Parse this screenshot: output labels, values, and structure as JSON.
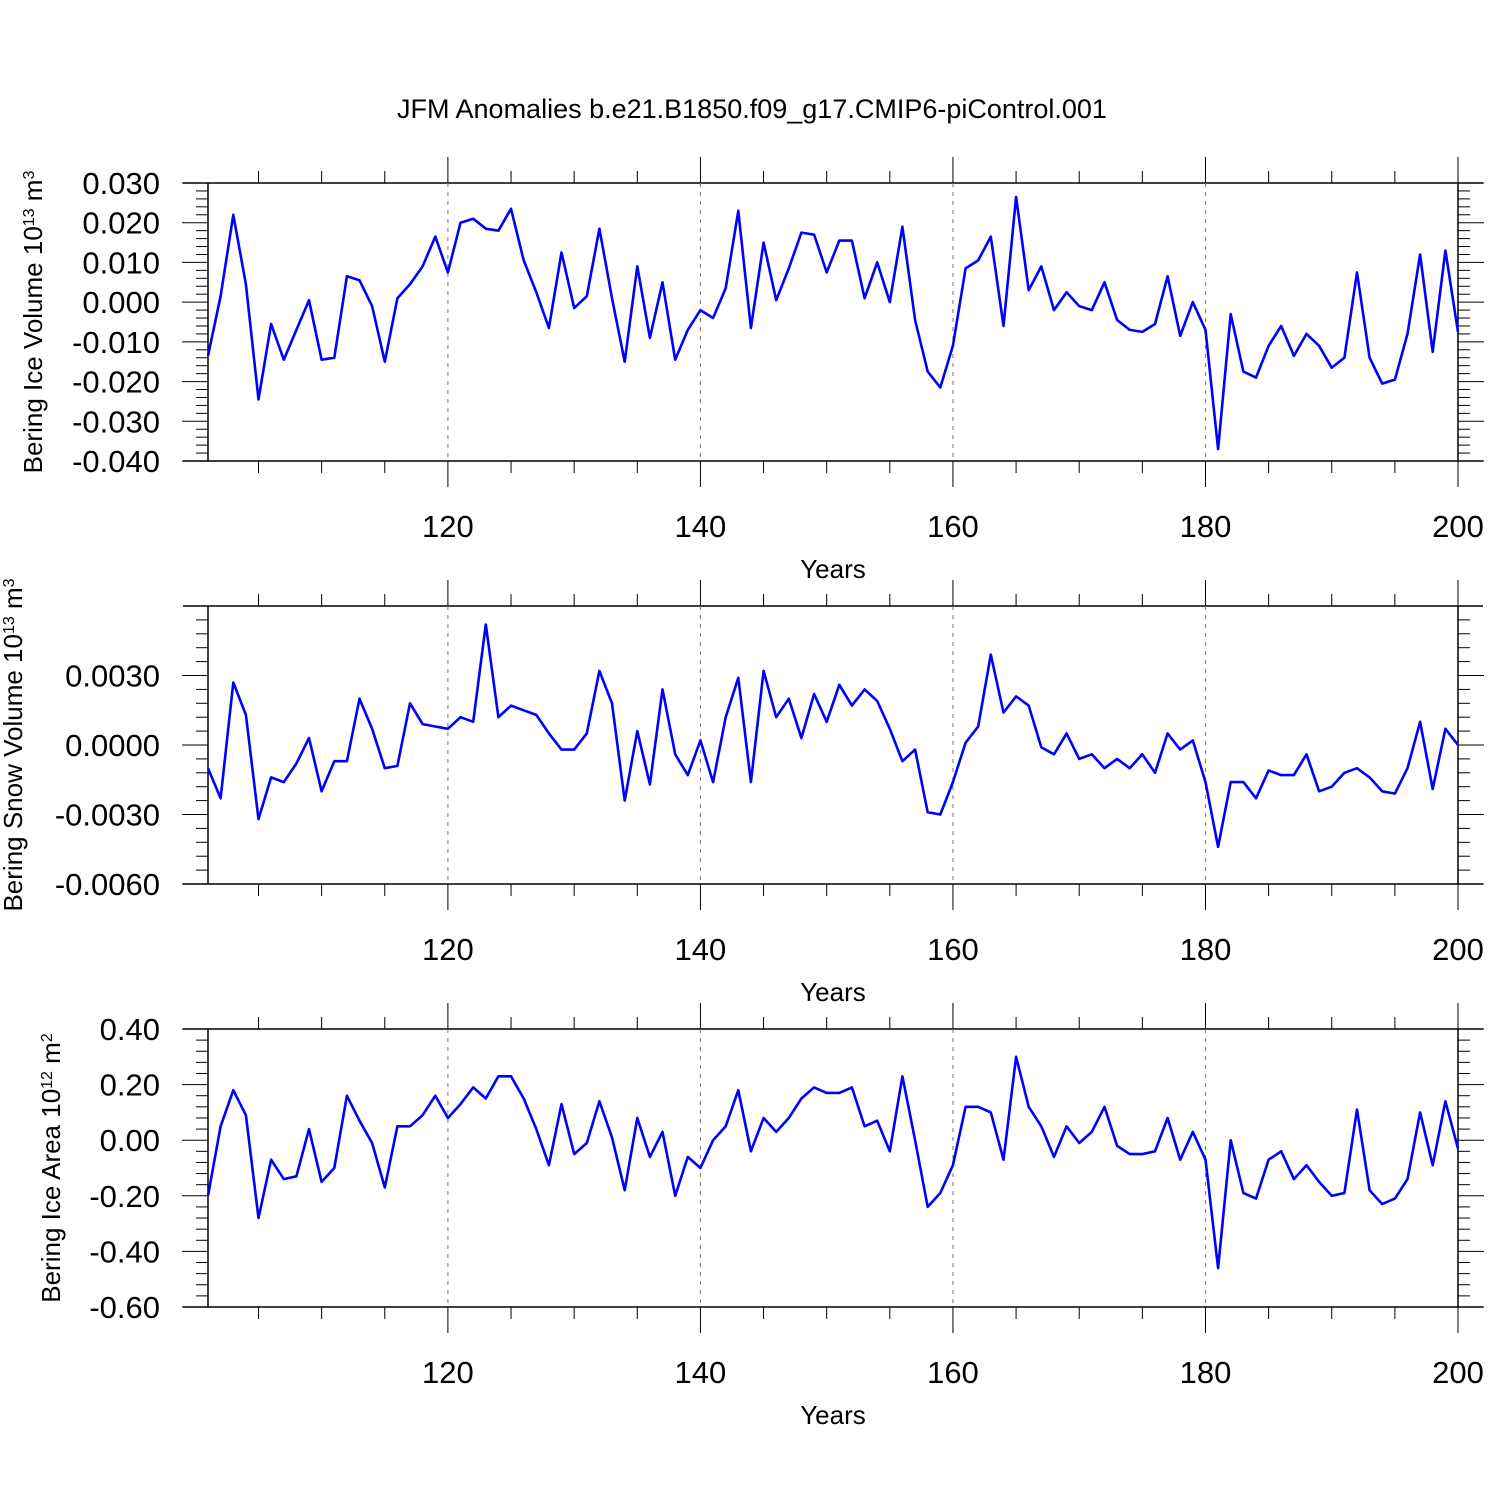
{
  "figure": {
    "title": "JFM Anomalies b.e21.B1850.f09_g17.CMIP6-piControl.001",
    "line_color": "#0000ff",
    "grid_color": "#777777"
  },
  "chart_data": [
    {
      "type": "line",
      "title": "JFM Anomalies b.e21.B1850.f09_g17.CMIP6-piControl.001",
      "xlabel": "Years",
      "ylabel_text": "Bering Ice Volume 10",
      "ylabel_exp": "13",
      "ylabel_unit": " m",
      "ylabel_unit_exp": "3",
      "xlim": [
        101,
        200
      ],
      "ylim": [
        -0.04,
        0.03
      ],
      "xticks": [
        120,
        140,
        160,
        180,
        200
      ],
      "xtick_labels": [
        "120",
        "140",
        "160",
        "180",
        "200"
      ],
      "yticks": [
        -0.04,
        -0.03,
        -0.02,
        -0.01,
        0.0,
        0.01,
        0.02,
        0.03
      ],
      "ytick_labels": [
        "-0.040",
        "-0.030",
        "-0.020",
        "-0.010",
        "0.000",
        "0.010",
        "0.020",
        "0.030"
      ],
      "grid": "dashed vertical at x ticks",
      "x_start": 101,
      "series": [
        {
          "name": "Bering Ice Volume",
          "values": [
            -0.0135,
            0.0015,
            0.022,
            0.0045,
            -0.0245,
            -0.0055,
            -0.0145,
            -0.007,
            0.0005,
            -0.0145,
            -0.014,
            0.0065,
            0.0055,
            -0.001,
            -0.015,
            0.001,
            0.0045,
            0.009,
            0.0165,
            0.0075,
            0.02,
            0.021,
            0.0185,
            0.018,
            0.0235,
            0.0105,
            0.0025,
            -0.0065,
            0.0125,
            -0.0015,
            0.0015,
            0.0185,
            0.001,
            -0.015,
            0.009,
            -0.009,
            0.005,
            -0.0145,
            -0.007,
            -0.002,
            -0.004,
            0.0035,
            0.023,
            -0.0065,
            0.015,
            0.0005,
            0.0085,
            0.0175,
            0.017,
            0.0075,
            0.0155,
            0.0155,
            0.001,
            0.01,
            0.0,
            0.019,
            -0.0045,
            -0.0175,
            -0.0215,
            -0.011,
            0.0085,
            0.0105,
            0.0165,
            -0.006,
            0.0265,
            0.003,
            0.009,
            -0.002,
            0.0025,
            -0.001,
            -0.002,
            0.005,
            -0.0045,
            -0.007,
            -0.0075,
            -0.0055,
            0.0065,
            -0.0085,
            0.0,
            -0.007,
            -0.037,
            -0.003,
            -0.0175,
            -0.019,
            -0.011,
            -0.006,
            -0.0135,
            -0.008,
            -0.011,
            -0.0165,
            -0.014,
            0.0075,
            -0.014,
            -0.0205,
            -0.0195,
            -0.008,
            0.012,
            -0.0125,
            0.013,
            -0.0075
          ]
        }
      ]
    },
    {
      "type": "line",
      "xlabel": "Years",
      "ylabel_text": "Bering Snow Volume 10",
      "ylabel_exp": "13",
      "ylabel_unit": " m",
      "ylabel_unit_exp": "3",
      "xlim": [
        101,
        200
      ],
      "ylim": [
        -0.006,
        0.006
      ],
      "xticks": [
        120,
        140,
        160,
        180,
        200
      ],
      "xtick_labels": [
        "120",
        "140",
        "160",
        "180",
        "200"
      ],
      "yticks": [
        -0.006,
        -0.003,
        0.0,
        0.003
      ],
      "ytick_labels": [
        "-0.0060",
        "-0.0030",
        "0.0000",
        "0.0030"
      ],
      "grid": "dashed vertical at x ticks",
      "x_start": 101,
      "series": [
        {
          "name": "Bering Snow Volume",
          "values": [
            -0.001,
            -0.0023,
            0.0027,
            0.0013,
            -0.0032,
            -0.0014,
            -0.0016,
            -0.0008,
            0.0003,
            -0.002,
            -0.0007,
            -0.0007,
            0.002,
            0.0007,
            -0.001,
            -0.0009,
            0.0018,
            0.0009,
            0.0008,
            0.0007,
            0.0012,
            0.001,
            0.0052,
            0.0012,
            0.0017,
            0.0015,
            0.0013,
            0.0005,
            -0.0002,
            -0.0002,
            0.0005,
            0.0032,
            0.0018,
            -0.0024,
            0.0006,
            -0.0017,
            0.0024,
            -0.0004,
            -0.0013,
            0.0002,
            -0.0016,
            0.0012,
            0.0029,
            -0.0016,
            0.0032,
            0.0012,
            0.002,
            0.0003,
            0.0022,
            0.001,
            0.0026,
            0.0017,
            0.0024,
            0.0019,
            0.0007,
            -0.0007,
            -0.0002,
            -0.0029,
            -0.003,
            -0.0016,
            0.0001,
            0.0008,
            0.0039,
            0.0014,
            0.0021,
            0.0017,
            -0.0001,
            -0.0004,
            0.0005,
            -0.0006,
            -0.0004,
            -0.001,
            -0.0006,
            -0.001,
            -0.0004,
            -0.0012,
            0.0005,
            -0.0002,
            0.0002,
            -0.0016,
            -0.0044,
            -0.0016,
            -0.0016,
            -0.0023,
            -0.0011,
            -0.0013,
            -0.0013,
            -0.0004,
            -0.002,
            -0.0018,
            -0.0012,
            -0.001,
            -0.0014,
            -0.002,
            -0.0021,
            -0.001,
            0.001,
            -0.0019,
            0.0007,
            0.0
          ]
        }
      ]
    },
    {
      "type": "line",
      "xlabel": "Years",
      "ylabel_text": "Bering Ice Area 10",
      "ylabel_exp": "12",
      "ylabel_unit": " m",
      "ylabel_unit_exp": "2",
      "xlim": [
        101,
        200
      ],
      "ylim": [
        -0.6,
        0.4
      ],
      "xticks": [
        120,
        140,
        160,
        180,
        200
      ],
      "xtick_labels": [
        "120",
        "140",
        "160",
        "180",
        "200"
      ],
      "yticks": [
        -0.6,
        -0.4,
        -0.2,
        0.0,
        0.2,
        0.4
      ],
      "ytick_labels": [
        "-0.60",
        "-0.40",
        "-0.20",
        "0.00",
        "0.20",
        "0.40"
      ],
      "grid": "dashed vertical at x ticks",
      "x_start": 101,
      "series": [
        {
          "name": "Bering Ice Area",
          "values": [
            -0.2,
            0.05,
            0.18,
            0.09,
            -0.28,
            -0.07,
            -0.14,
            -0.13,
            0.04,
            -0.15,
            -0.1,
            0.16,
            0.07,
            -0.01,
            -0.17,
            0.05,
            0.05,
            0.09,
            0.16,
            0.08,
            0.13,
            0.19,
            0.15,
            0.23,
            0.23,
            0.15,
            0.04,
            -0.09,
            0.13,
            -0.05,
            -0.01,
            0.14,
            0.01,
            -0.18,
            0.08,
            -0.06,
            0.03,
            -0.2,
            -0.06,
            -0.1,
            0.0,
            0.05,
            0.18,
            -0.04,
            0.08,
            0.03,
            0.08,
            0.15,
            0.19,
            0.17,
            0.17,
            0.19,
            0.05,
            0.07,
            -0.04,
            0.23,
            0.0,
            -0.24,
            -0.19,
            -0.09,
            0.12,
            0.12,
            0.1,
            -0.07,
            0.3,
            0.12,
            0.05,
            -0.06,
            0.05,
            -0.01,
            0.03,
            0.12,
            -0.02,
            -0.05,
            -0.05,
            -0.04,
            0.08,
            -0.07,
            0.03,
            -0.07,
            -0.46,
            0.0,
            -0.19,
            -0.21,
            -0.07,
            -0.04,
            -0.14,
            -0.09,
            -0.15,
            -0.2,
            -0.19,
            0.11,
            -0.18,
            -0.23,
            -0.21,
            -0.14,
            0.1,
            -0.09,
            0.14,
            -0.03
          ]
        }
      ]
    }
  ]
}
